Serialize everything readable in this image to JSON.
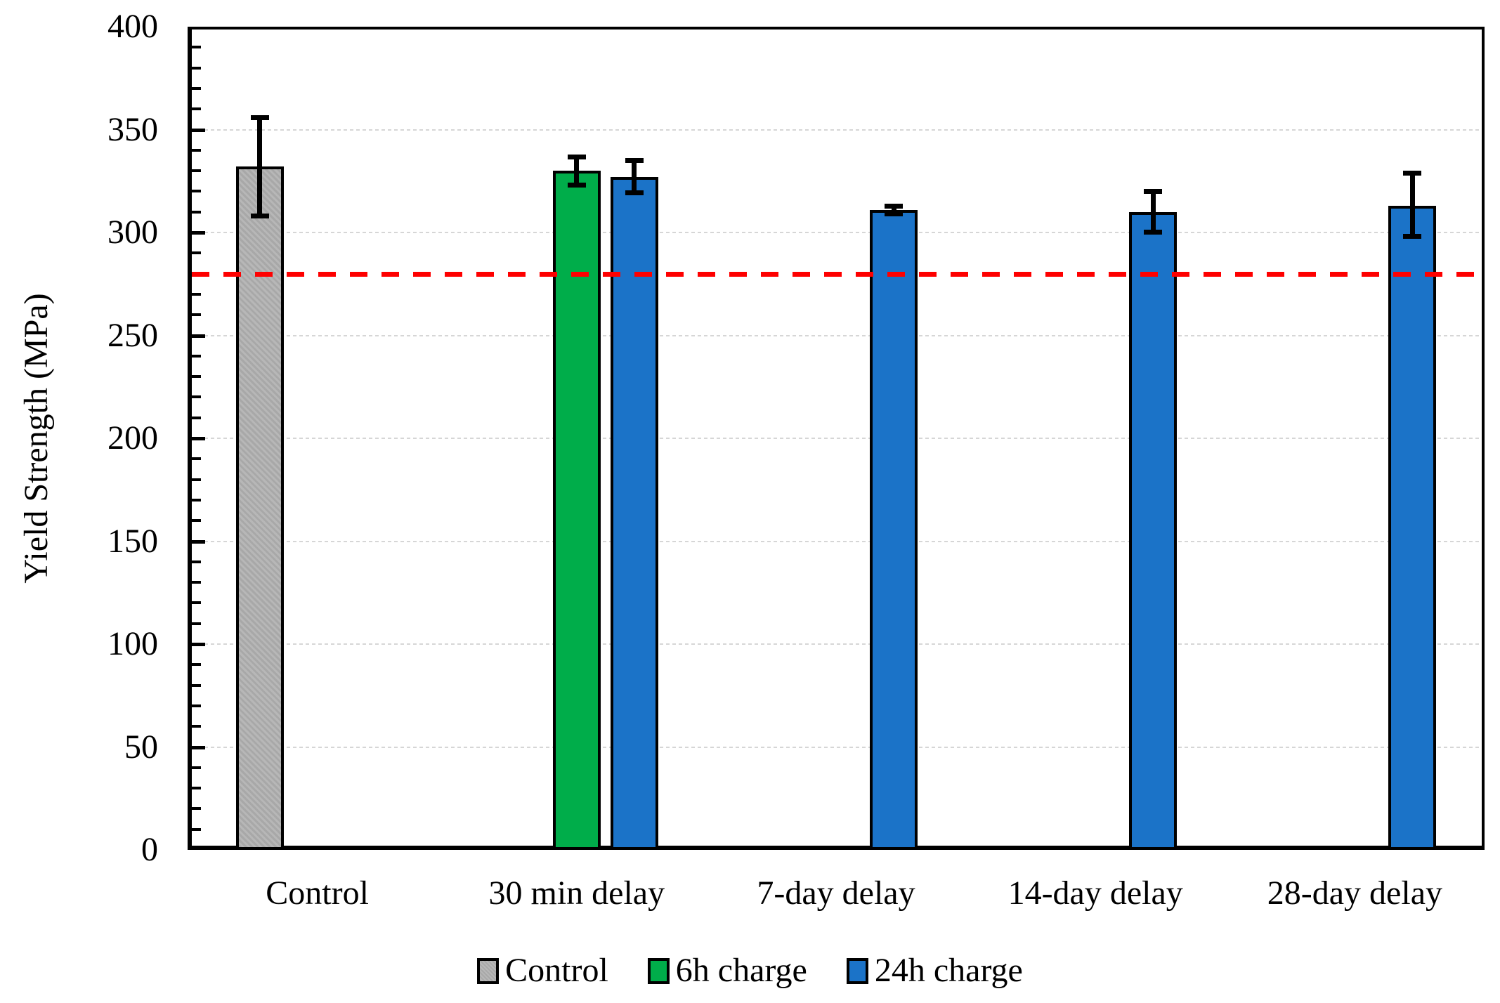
{
  "colors": {
    "gray": "#b3b3b3",
    "green": "#00ad4a",
    "blue": "#1b73c8",
    "red": "#fe0000",
    "gridline": "#d6d6d6",
    "axis": "#000000"
  },
  "chart_data": {
    "type": "bar",
    "title": "",
    "xlabel": "",
    "ylabel": "Yield Strength (MPa)",
    "ylim": [
      0,
      400
    ],
    "y_major_ticks": [
      0,
      50,
      100,
      150,
      200,
      250,
      300,
      350,
      400
    ],
    "y_tick_labels": [
      "0",
      "50",
      "100",
      "150",
      "200",
      "250",
      "300",
      "350",
      "400"
    ],
    "y_minor_step": 10,
    "grid": "major-horizontal",
    "categories": [
      "Control",
      "30 min delay",
      "7-day delay",
      "14-day delay",
      "28-day delay"
    ],
    "series": [
      {
        "name": "Control",
        "color": "#b3b3b3",
        "textured": true,
        "points": [
          {
            "category": "Control",
            "value": 332,
            "err_plus": 24,
            "err_minus": 24
          }
        ]
      },
      {
        "name": "6h charge",
        "color": "#00ad4a",
        "textured": false,
        "points": [
          {
            "category": "30 min delay",
            "value": 330,
            "err_plus": 7,
            "err_minus": 7
          }
        ]
      },
      {
        "name": "24h charge",
        "color": "#1b73c8",
        "textured": false,
        "points": [
          {
            "category": "30 min delay",
            "value": 327,
            "err_plus": 8,
            "err_minus": 8
          },
          {
            "category": "7-day delay",
            "value": 311,
            "err_plus": 2,
            "err_minus": 2
          },
          {
            "category": "14-day delay",
            "value": 310,
            "err_plus": 10,
            "err_minus": 10
          },
          {
            "category": "28-day delay",
            "value": 313,
            "err_plus": 16,
            "err_minus": 15
          }
        ]
      }
    ],
    "reference_line": {
      "value": 280,
      "color": "#fe0000",
      "style": "dashed"
    },
    "legend": {
      "position": "bottom",
      "entries": [
        "Control",
        "6h charge",
        "24h charge"
      ]
    }
  }
}
